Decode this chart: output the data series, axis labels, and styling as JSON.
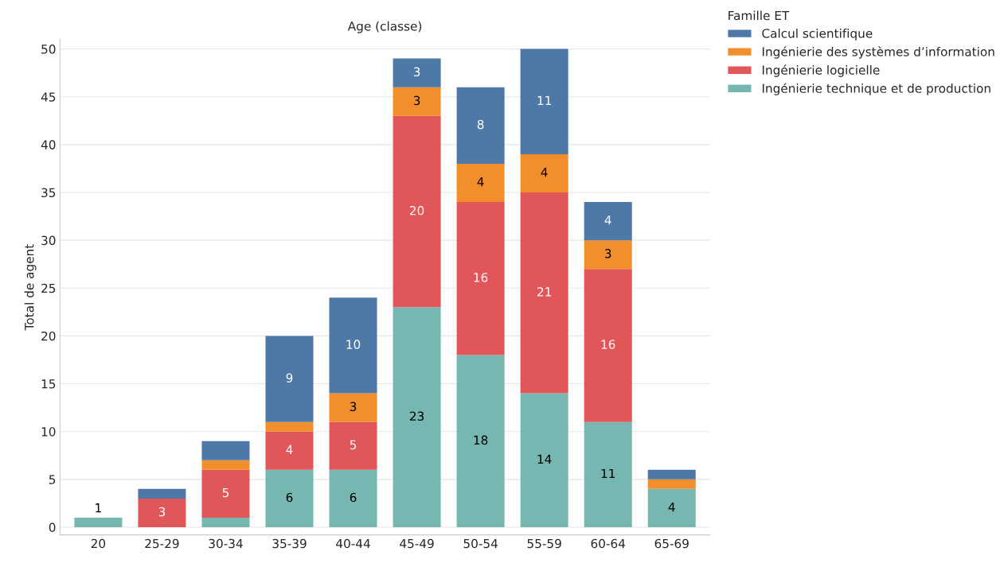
{
  "chart_data": {
    "type": "bar",
    "stacked": true,
    "xlabel": "Age (classe)",
    "ylabel": "Total de agent",
    "legend_title": "Famille ET",
    "categories": [
      "20",
      "25-29",
      "30-34",
      "35-39",
      "40-44",
      "45-49",
      "50-54",
      "55-59",
      "60-64",
      "65-69"
    ],
    "series": [
      {
        "name": "Ingénierie technique et de production",
        "color": "#76b7b2",
        "values": [
          1,
          0,
          1,
          6,
          6,
          23,
          18,
          14,
          11,
          4
        ],
        "value_labels": [
          "1",
          null,
          null,
          "6",
          "6",
          "23",
          "18",
          "14",
          "11",
          "4"
        ]
      },
      {
        "name": "Ingénierie logicielle",
        "color": "#e15759",
        "values": [
          0,
          3,
          5,
          4,
          5,
          20,
          16,
          21,
          16,
          0
        ],
        "value_labels": [
          null,
          "3",
          "5",
          "4",
          "5",
          "20",
          "16",
          "21",
          "16",
          null
        ]
      },
      {
        "name": "Ingénierie des systèmes d’information",
        "color": "#f28e2b",
        "values": [
          0,
          0,
          1,
          1,
          3,
          3,
          4,
          4,
          3,
          1
        ],
        "value_labels": [
          null,
          null,
          null,
          null,
          "3",
          "3",
          "4",
          "4",
          "3",
          null
        ]
      },
      {
        "name": "Calcul scientifique",
        "color": "#4e79a7",
        "values": [
          0,
          1,
          2,
          9,
          10,
          3,
          8,
          11,
          4,
          1
        ],
        "value_labels": [
          null,
          null,
          null,
          "9",
          "10",
          "3",
          "8",
          "11",
          "4",
          null
        ]
      }
    ],
    "ylim": [
      -0.8,
      51
    ],
    "yticks": [
      0,
      5,
      10,
      15,
      20,
      25,
      30,
      35,
      40,
      45,
      50
    ],
    "grid": "y",
    "legend": "top right"
  }
}
